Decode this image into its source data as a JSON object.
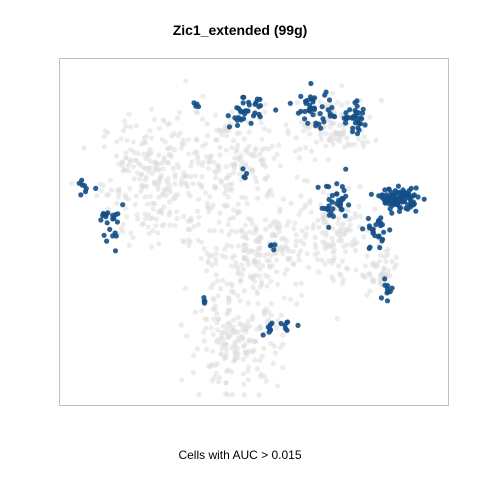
{
  "chart_data": {
    "type": "scatter",
    "title": "Zic1_extended (99g)",
    "xlabel": "Cells with AUC > 0.015",
    "ylabel": "",
    "xlim": [
      0,
      100
    ],
    "ylim": [
      0,
      100
    ],
    "grid": false,
    "legend": "none",
    "colors": {
      "background_cells": "#dcdcdc",
      "highlighted_cells": "#144f88",
      "frame": "#bfbfbf"
    },
    "background_regions": [
      {
        "cx": 24,
        "cy": 66,
        "rx": 14,
        "ry": 18,
        "n": 260
      },
      {
        "cx": 45,
        "cy": 73,
        "rx": 13,
        "ry": 12,
        "n": 140
      },
      {
        "cx": 50,
        "cy": 44,
        "rx": 15,
        "ry": 16,
        "n": 240
      },
      {
        "cx": 45,
        "cy": 17,
        "rx": 11,
        "ry": 12,
        "n": 180
      },
      {
        "cx": 72,
        "cy": 50,
        "rx": 9,
        "ry": 14,
        "n": 120
      },
      {
        "cx": 72,
        "cy": 82,
        "rx": 9,
        "ry": 8,
        "n": 100
      },
      {
        "cx": 84,
        "cy": 38,
        "rx": 5,
        "ry": 7,
        "n": 50
      }
    ],
    "highlighted_regions": [
      {
        "cx": 89,
        "cy": 60,
        "rx": 4.5,
        "ry": 2.8,
        "n": 110
      },
      {
        "cx": 48,
        "cy": 86,
        "rx": 4,
        "ry": 4,
        "n": 35
      },
      {
        "cx": 66,
        "cy": 87,
        "rx": 4.5,
        "ry": 5,
        "n": 40
      },
      {
        "cx": 77,
        "cy": 84,
        "rx": 4,
        "ry": 4,
        "n": 35
      },
      {
        "cx": 72,
        "cy": 58,
        "rx": 4,
        "ry": 6,
        "n": 35
      },
      {
        "cx": 83,
        "cy": 50,
        "rx": 3,
        "ry": 6,
        "n": 25
      },
      {
        "cx": 86,
        "cy": 33,
        "rx": 1.5,
        "ry": 3,
        "n": 10
      },
      {
        "cx": 11,
        "cy": 52,
        "rx": 3.5,
        "ry": 8,
        "n": 22
      },
      {
        "cx": 4.5,
        "cy": 63,
        "rx": 1.5,
        "ry": 3,
        "n": 8
      },
      {
        "cx": 57,
        "cy": 21,
        "rx": 5,
        "ry": 2,
        "n": 14
      },
      {
        "cx": 36,
        "cy": 29,
        "rx": 1,
        "ry": 1.5,
        "n": 4
      },
      {
        "cx": 34,
        "cy": 88,
        "rx": 1,
        "ry": 1.5,
        "n": 4
      },
      {
        "cx": 47,
        "cy": 67,
        "rx": 1,
        "ry": 3,
        "n": 4
      },
      {
        "cx": 55,
        "cy": 46,
        "rx": 1,
        "ry": 1.5,
        "n": 4
      }
    ]
  }
}
